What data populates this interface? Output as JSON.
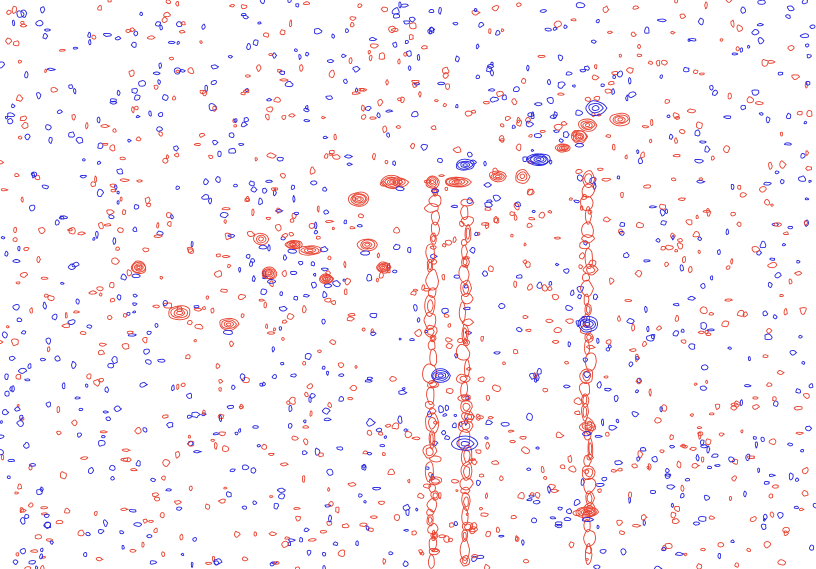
{
  "chart_data": {
    "type": "contour",
    "title": "",
    "xlabel": "",
    "ylabel": "",
    "axes_visible": false,
    "grid": false,
    "legend": "none",
    "series": [
      {
        "sign": "positive",
        "color": "#e8412e"
      },
      {
        "sign": "negative",
        "color": "#2424e0"
      }
    ],
    "strong_peaks": [
      {
        "x": 0.17,
        "y": 0.47,
        "sign": "positive"
      },
      {
        "x": 0.22,
        "y": 0.55,
        "sign": "positive"
      },
      {
        "x": 0.28,
        "y": 0.57,
        "sign": "positive"
      },
      {
        "x": 0.32,
        "y": 0.42,
        "sign": "positive"
      },
      {
        "x": 0.33,
        "y": 0.48,
        "sign": "positive"
      },
      {
        "x": 0.36,
        "y": 0.43,
        "sign": "positive"
      },
      {
        "x": 0.38,
        "y": 0.44,
        "sign": "positive"
      },
      {
        "x": 0.4,
        "y": 0.49,
        "sign": "positive"
      },
      {
        "x": 0.44,
        "y": 0.35,
        "sign": "positive"
      },
      {
        "x": 0.45,
        "y": 0.43,
        "sign": "positive"
      },
      {
        "x": 0.47,
        "y": 0.47,
        "sign": "positive"
      },
      {
        "x": 0.48,
        "y": 0.32,
        "sign": "positive"
      },
      {
        "x": 0.49,
        "y": 0.32,
        "sign": "positive"
      },
      {
        "x": 0.53,
        "y": 0.32,
        "sign": "positive"
      },
      {
        "x": 0.56,
        "y": 0.32,
        "sign": "positive"
      },
      {
        "x": 0.57,
        "y": 0.29,
        "sign": "negative"
      },
      {
        "x": 0.61,
        "y": 0.31,
        "sign": "positive"
      },
      {
        "x": 0.64,
        "y": 0.31,
        "sign": "positive"
      },
      {
        "x": 0.66,
        "y": 0.28,
        "sign": "negative"
      },
      {
        "x": 0.69,
        "y": 0.26,
        "sign": "positive"
      },
      {
        "x": 0.71,
        "y": 0.24,
        "sign": "positive"
      },
      {
        "x": 0.72,
        "y": 0.22,
        "sign": "positive"
      },
      {
        "x": 0.73,
        "y": 0.19,
        "sign": "negative"
      },
      {
        "x": 0.76,
        "y": 0.21,
        "sign": "positive"
      },
      {
        "x": 0.54,
        "y": 0.66,
        "sign": "negative"
      },
      {
        "x": 0.57,
        "y": 0.78,
        "sign": "negative"
      },
      {
        "x": 0.72,
        "y": 0.57,
        "sign": "negative"
      },
      {
        "x": 0.72,
        "y": 0.75,
        "sign": "positive"
      },
      {
        "x": 0.72,
        "y": 0.9,
        "sign": "positive"
      }
    ],
    "ridges": [
      {
        "x": 0.53,
        "y_from": 0.33,
        "y_to": 0.98,
        "sign": "positive"
      },
      {
        "x": 0.57,
        "y_from": 0.35,
        "y_to": 0.98,
        "sign": "positive"
      },
      {
        "x": 0.72,
        "y_from": 0.3,
        "y_to": 0.98,
        "sign": "positive"
      }
    ]
  }
}
